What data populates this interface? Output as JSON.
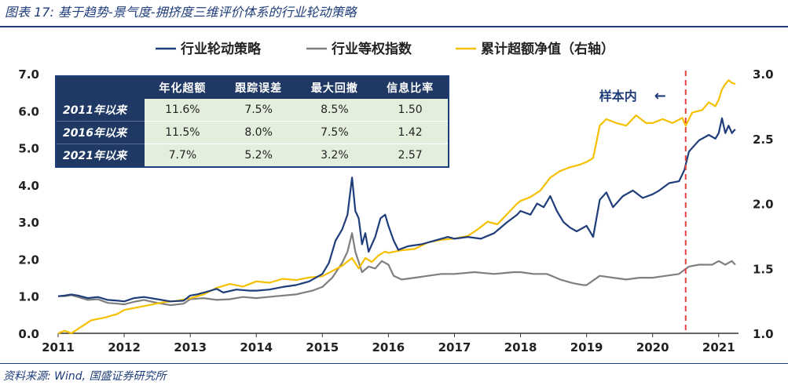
{
  "header": {
    "title": "图表 17: 基于趋势-景气度-拥挤度三维评价体系的行业轮动策略"
  },
  "footer": {
    "source": "资料来源: Wind, 国盛证券研究所"
  },
  "colors": {
    "strategy": "#1f3d7a",
    "benchmark": "#7f7f7f",
    "excess": "#f5c000",
    "marker": "#e8413b",
    "table_header": "#1f3864",
    "table_cell": "#e3efdc"
  },
  "annotation": {
    "label": "样本内",
    "arrow": "←",
    "marker_x": 2020.5
  },
  "table": {
    "headers": [
      "",
      "年化超额",
      "跟踪误差",
      "最大回撤",
      "信息比率"
    ],
    "rows": [
      {
        "label": "2011年以来",
        "values": [
          "11.6%",
          "7.5%",
          "8.5%",
          "1.50"
        ]
      },
      {
        "label": "2016年以来",
        "values": [
          "11.5%",
          "8.0%",
          "7.5%",
          "1.42"
        ]
      },
      {
        "label": "2021年以来",
        "values": [
          "7.7%",
          "5.2%",
          "3.2%",
          "2.57"
        ]
      }
    ]
  },
  "chart_data": {
    "type": "line",
    "title": "",
    "xlabel": "",
    "ylabel": "",
    "xlim": [
      2011.0,
      2021.3
    ],
    "ylim": [
      0,
      7
    ],
    "y2lim": [
      1,
      3
    ],
    "x_ticks": [
      2011,
      2012,
      2013,
      2014,
      2015,
      2016,
      2017,
      2018,
      2019,
      2020,
      2021
    ],
    "x_tick_labels": [
      "2011",
      "2012",
      "2013",
      "2014",
      "2015",
      "2016",
      "2017",
      "2018",
      "2019",
      "2020",
      "2021"
    ],
    "y_ticks": [
      0,
      1,
      2,
      3,
      4,
      5,
      6,
      7
    ],
    "y_tick_labels": [
      "0.0",
      "1.0",
      "2.0",
      "3.0",
      "4.0",
      "5.0",
      "6.0",
      "7.0"
    ],
    "y2_ticks": [
      1.0,
      1.5,
      2.0,
      2.5,
      3.0
    ],
    "y2_tick_labels": [
      "1.0",
      "1.5",
      "2.0",
      "2.5",
      "3.0"
    ],
    "grid": false,
    "legend_position": "top",
    "series": [
      {
        "name": "行业轮动策略",
        "axis": "left",
        "points": [
          [
            2011.0,
            1.0
          ],
          [
            2011.1,
            1.02
          ],
          [
            2011.2,
            1.05
          ],
          [
            2011.3,
            1.02
          ],
          [
            2011.45,
            0.95
          ],
          [
            2011.6,
            0.98
          ],
          [
            2011.75,
            0.9
          ],
          [
            2011.9,
            0.88
          ],
          [
            2012.0,
            0.86
          ],
          [
            2012.15,
            0.95
          ],
          [
            2012.3,
            0.98
          ],
          [
            2012.5,
            0.92
          ],
          [
            2012.7,
            0.86
          ],
          [
            2012.9,
            0.88
          ],
          [
            2013.0,
            1.02
          ],
          [
            2013.1,
            1.05
          ],
          [
            2013.25,
            1.12
          ],
          [
            2013.4,
            1.2
          ],
          [
            2013.5,
            1.1
          ],
          [
            2013.7,
            1.18
          ],
          [
            2013.9,
            1.15
          ],
          [
            2014.0,
            1.15
          ],
          [
            2014.2,
            1.18
          ],
          [
            2014.4,
            1.25
          ],
          [
            2014.6,
            1.3
          ],
          [
            2014.8,
            1.4
          ],
          [
            2014.95,
            1.55
          ],
          [
            2015.0,
            1.6
          ],
          [
            2015.1,
            1.9
          ],
          [
            2015.2,
            2.5
          ],
          [
            2015.3,
            2.8
          ],
          [
            2015.38,
            3.2
          ],
          [
            2015.45,
            4.2
          ],
          [
            2015.5,
            3.3
          ],
          [
            2015.55,
            3.1
          ],
          [
            2015.6,
            2.4
          ],
          [
            2015.65,
            2.7
          ],
          [
            2015.7,
            2.2
          ],
          [
            2015.8,
            2.6
          ],
          [
            2015.88,
            3.1
          ],
          [
            2015.95,
            3.2
          ],
          [
            2016.0,
            2.9
          ],
          [
            2016.08,
            2.5
          ],
          [
            2016.15,
            2.25
          ],
          [
            2016.3,
            2.35
          ],
          [
            2016.5,
            2.4
          ],
          [
            2016.7,
            2.5
          ],
          [
            2016.9,
            2.6
          ],
          [
            2017.0,
            2.55
          ],
          [
            2017.2,
            2.6
          ],
          [
            2017.4,
            2.55
          ],
          [
            2017.6,
            2.7
          ],
          [
            2017.8,
            3.0
          ],
          [
            2017.95,
            3.2
          ],
          [
            2018.0,
            3.3
          ],
          [
            2018.15,
            3.2
          ],
          [
            2018.25,
            3.5
          ],
          [
            2018.35,
            3.4
          ],
          [
            2018.45,
            3.7
          ],
          [
            2018.55,
            3.3
          ],
          [
            2018.65,
            3.0
          ],
          [
            2018.75,
            2.85
          ],
          [
            2018.85,
            2.75
          ],
          [
            2019.0,
            2.9
          ],
          [
            2019.1,
            2.6
          ],
          [
            2019.2,
            3.6
          ],
          [
            2019.3,
            3.8
          ],
          [
            2019.4,
            3.4
          ],
          [
            2019.55,
            3.7
          ],
          [
            2019.7,
            3.85
          ],
          [
            2019.85,
            3.65
          ],
          [
            2020.0,
            3.75
          ],
          [
            2020.1,
            3.85
          ],
          [
            2020.25,
            4.05
          ],
          [
            2020.4,
            4.1
          ],
          [
            2020.48,
            4.4
          ],
          [
            2020.55,
            4.9
          ],
          [
            2020.7,
            5.2
          ],
          [
            2020.85,
            5.35
          ],
          [
            2020.95,
            5.25
          ],
          [
            2021.0,
            5.4
          ],
          [
            2021.05,
            5.8
          ],
          [
            2021.1,
            5.4
          ],
          [
            2021.15,
            5.6
          ],
          [
            2021.2,
            5.4
          ],
          [
            2021.25,
            5.5
          ]
        ]
      },
      {
        "name": "行业等权指数",
        "axis": "left",
        "points": [
          [
            2011.0,
            1.0
          ],
          [
            2011.1,
            1.0
          ],
          [
            2011.2,
            1.03
          ],
          [
            2011.3,
            0.98
          ],
          [
            2011.45,
            0.9
          ],
          [
            2011.6,
            0.92
          ],
          [
            2011.75,
            0.82
          ],
          [
            2011.9,
            0.8
          ],
          [
            2012.0,
            0.78
          ],
          [
            2012.15,
            0.85
          ],
          [
            2012.3,
            0.9
          ],
          [
            2012.5,
            0.82
          ],
          [
            2012.7,
            0.76
          ],
          [
            2012.9,
            0.8
          ],
          [
            2013.0,
            0.92
          ],
          [
            2013.2,
            0.95
          ],
          [
            2013.4,
            0.9
          ],
          [
            2013.6,
            0.92
          ],
          [
            2013.8,
            0.98
          ],
          [
            2014.0,
            0.95
          ],
          [
            2014.3,
            1.0
          ],
          [
            2014.6,
            1.05
          ],
          [
            2014.85,
            1.15
          ],
          [
            2015.0,
            1.25
          ],
          [
            2015.15,
            1.5
          ],
          [
            2015.3,
            1.9
          ],
          [
            2015.38,
            2.2
          ],
          [
            2015.45,
            2.7
          ],
          [
            2015.5,
            2.2
          ],
          [
            2015.6,
            1.65
          ],
          [
            2015.7,
            1.8
          ],
          [
            2015.8,
            1.75
          ],
          [
            2015.9,
            1.95
          ],
          [
            2016.0,
            1.85
          ],
          [
            2016.08,
            1.55
          ],
          [
            2016.2,
            1.45
          ],
          [
            2016.4,
            1.5
          ],
          [
            2016.6,
            1.55
          ],
          [
            2016.8,
            1.6
          ],
          [
            2017.0,
            1.6
          ],
          [
            2017.3,
            1.65
          ],
          [
            2017.6,
            1.6
          ],
          [
            2017.9,
            1.65
          ],
          [
            2018.0,
            1.65
          ],
          [
            2018.2,
            1.6
          ],
          [
            2018.4,
            1.6
          ],
          [
            2018.6,
            1.45
          ],
          [
            2018.8,
            1.35
          ],
          [
            2018.95,
            1.3
          ],
          [
            2019.0,
            1.3
          ],
          [
            2019.2,
            1.55
          ],
          [
            2019.4,
            1.5
          ],
          [
            2019.6,
            1.45
          ],
          [
            2019.8,
            1.5
          ],
          [
            2020.0,
            1.5
          ],
          [
            2020.2,
            1.55
          ],
          [
            2020.4,
            1.6
          ],
          [
            2020.55,
            1.8
          ],
          [
            2020.7,
            1.85
          ],
          [
            2020.9,
            1.85
          ],
          [
            2021.0,
            1.95
          ],
          [
            2021.1,
            1.85
          ],
          [
            2021.2,
            1.95
          ],
          [
            2021.25,
            1.85
          ]
        ]
      },
      {
        "name": "累计超额净值（右轴）",
        "axis": "right",
        "points": [
          [
            2011.0,
            1.0
          ],
          [
            2011.1,
            1.02
          ],
          [
            2011.2,
            1.0
          ],
          [
            2011.35,
            1.05
          ],
          [
            2011.5,
            1.1
          ],
          [
            2011.7,
            1.12
          ],
          [
            2011.9,
            1.15
          ],
          [
            2012.0,
            1.18
          ],
          [
            2012.2,
            1.2
          ],
          [
            2012.4,
            1.22
          ],
          [
            2012.6,
            1.24
          ],
          [
            2012.8,
            1.25
          ],
          [
            2013.0,
            1.27
          ],
          [
            2013.2,
            1.3
          ],
          [
            2013.4,
            1.35
          ],
          [
            2013.6,
            1.38
          ],
          [
            2013.8,
            1.36
          ],
          [
            2014.0,
            1.4
          ],
          [
            2014.2,
            1.39
          ],
          [
            2014.4,
            1.42
          ],
          [
            2014.6,
            1.41
          ],
          [
            2014.8,
            1.43
          ],
          [
            2015.0,
            1.44
          ],
          [
            2015.15,
            1.48
          ],
          [
            2015.3,
            1.52
          ],
          [
            2015.45,
            1.58
          ],
          [
            2015.55,
            1.5
          ],
          [
            2015.65,
            1.58
          ],
          [
            2015.75,
            1.55
          ],
          [
            2015.85,
            1.6
          ],
          [
            2015.95,
            1.63
          ],
          [
            2016.0,
            1.62
          ],
          [
            2016.2,
            1.64
          ],
          [
            2016.4,
            1.65
          ],
          [
            2016.6,
            1.7
          ],
          [
            2016.8,
            1.72
          ],
          [
            2017.0,
            1.73
          ],
          [
            2017.2,
            1.75
          ],
          [
            2017.35,
            1.8
          ],
          [
            2017.5,
            1.86
          ],
          [
            2017.65,
            1.84
          ],
          [
            2017.8,
            1.92
          ],
          [
            2017.95,
            2.0
          ],
          [
            2018.0,
            2.02
          ],
          [
            2018.15,
            2.05
          ],
          [
            2018.3,
            2.1
          ],
          [
            2018.45,
            2.2
          ],
          [
            2018.6,
            2.25
          ],
          [
            2018.75,
            2.28
          ],
          [
            2018.9,
            2.3
          ],
          [
            2019.0,
            2.32
          ],
          [
            2019.1,
            2.35
          ],
          [
            2019.2,
            2.6
          ],
          [
            2019.3,
            2.65
          ],
          [
            2019.45,
            2.62
          ],
          [
            2019.6,
            2.6
          ],
          [
            2019.75,
            2.68
          ],
          [
            2019.9,
            2.62
          ],
          [
            2020.0,
            2.62
          ],
          [
            2020.15,
            2.65
          ],
          [
            2020.3,
            2.62
          ],
          [
            2020.45,
            2.66
          ],
          [
            2020.5,
            2.6
          ],
          [
            2020.6,
            2.7
          ],
          [
            2020.75,
            2.72
          ],
          [
            2020.85,
            2.78
          ],
          [
            2020.95,
            2.75
          ],
          [
            2021.0,
            2.8
          ],
          [
            2021.05,
            2.88
          ],
          [
            2021.1,
            2.92
          ],
          [
            2021.15,
            2.95
          ],
          [
            2021.2,
            2.93
          ],
          [
            2021.25,
            2.92
          ]
        ]
      }
    ]
  }
}
